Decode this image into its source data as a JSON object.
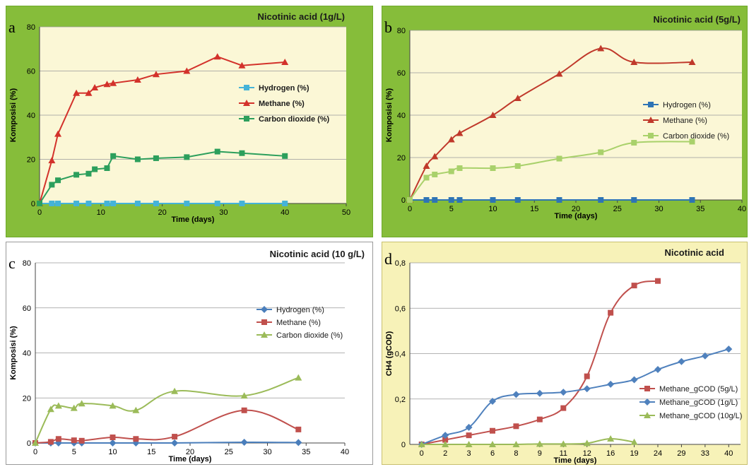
{
  "chart_data": [
    {
      "panel": "a",
      "letter": "a",
      "type": "line",
      "title": "Nicotinic acid (1g/L)",
      "xlabel": "Time (days)",
      "ylabel": "Komposisi (%)",
      "xlim": [
        0,
        50
      ],
      "ylim": [
        0,
        80
      ],
      "xticks": [
        0,
        10,
        20,
        30,
        40,
        50
      ],
      "yticks": [
        0,
        20,
        40,
        60,
        80
      ],
      "ytick_labels": [
        "0",
        "20",
        "40",
        "60",
        "80"
      ],
      "grid": "horizontal",
      "legend_position": "right",
      "colors": {
        "frame": "#86bd3a",
        "plot_bg": "#fbf7d6"
      },
      "series": [
        {
          "name": "Hydrogen (%)",
          "color": "#45b3d8",
          "marker": "square",
          "x": [
            0,
            2,
            3,
            6,
            8,
            11,
            12,
            16,
            19,
            24,
            29,
            33,
            40
          ],
          "y": [
            0,
            0,
            0,
            0,
            0,
            0,
            0,
            0,
            0,
            0,
            0,
            0,
            0
          ]
        },
        {
          "name": "Methane (%)",
          "color": "#d3322b",
          "marker": "triangle",
          "x": [
            0,
            2,
            3,
            6,
            8,
            9,
            11,
            12,
            16,
            19,
            24,
            29,
            33,
            40
          ],
          "y": [
            0,
            19.5,
            31.5,
            50,
            50,
            52.5,
            54,
            54.5,
            56,
            58.5,
            60,
            66.5,
            62.5,
            64
          ]
        },
        {
          "name": "Carbon dioxide (%)",
          "color": "#2c9f5c",
          "marker": "square",
          "x": [
            0,
            2,
            3,
            6,
            8,
            9,
            11,
            12,
            16,
            19,
            24,
            29,
            33,
            40
          ],
          "y": [
            0,
            8.5,
            10.5,
            13,
            13.5,
            15.5,
            16,
            21.5,
            20,
            20.5,
            21,
            23.5,
            22.8,
            21.5
          ]
        }
      ]
    },
    {
      "panel": "b",
      "letter": "b",
      "type": "line",
      "title": "Nicotinic acid (5g/L)",
      "xlabel": "Time (days)",
      "ylabel": "Komposisi (%)",
      "xlim": [
        0,
        40
      ],
      "ylim": [
        0,
        80
      ],
      "xticks": [
        0,
        5,
        10,
        15,
        20,
        25,
        30,
        35,
        40
      ],
      "yticks": [
        0,
        20,
        40,
        60,
        80
      ],
      "ytick_labels": [
        "0",
        "20",
        "40",
        "60",
        "80"
      ],
      "grid": "horizontal",
      "legend_position": "right",
      "colors": {
        "frame": "#86bd3a",
        "plot_bg": "#fbf7d6"
      },
      "series": [
        {
          "name": "Hydrogen (%)",
          "color": "#2e74b5",
          "marker": "square",
          "x": [
            0,
            2,
            3,
            5,
            6,
            10,
            13,
            18,
            23,
            27,
            34
          ],
          "y": [
            0,
            0,
            0,
            0,
            0,
            0,
            0,
            0,
            0,
            0,
            0
          ]
        },
        {
          "name": "Methane (%)",
          "color": "#c0392b",
          "marker": "triangle",
          "x": [
            0,
            2,
            3,
            5,
            6,
            10,
            13,
            18,
            23,
            27,
            34
          ],
          "y": [
            0,
            16,
            20.5,
            28.5,
            31.5,
            40,
            48,
            59.5,
            71.5,
            65,
            65
          ]
        },
        {
          "name": "Carbon dioxide (%)",
          "color": "#a9d16b",
          "marker": "square",
          "x": [
            0,
            2,
            3,
            5,
            6,
            10,
            13,
            18,
            23,
            27,
            34
          ],
          "y": [
            0,
            10.5,
            12,
            13.5,
            15,
            15,
            16,
            19.5,
            22.5,
            27,
            27.5
          ]
        }
      ]
    },
    {
      "panel": "c",
      "letter": "c",
      "type": "line",
      "title": "Nicotinic acid (10 g/L)",
      "xlabel": "Time (days)",
      "ylabel": "Komposisi (%)",
      "xlim": [
        0,
        40
      ],
      "ylim": [
        0,
        80
      ],
      "xticks": [
        0,
        5,
        10,
        15,
        20,
        25,
        30,
        35,
        40
      ],
      "yticks": [
        0,
        20,
        40,
        60,
        80
      ],
      "ytick_labels": [
        "0",
        "20",
        "40",
        "60",
        "80"
      ],
      "grid": "horizontal",
      "legend_position": "right",
      "colors": {
        "frame": "#ffffff",
        "plot_bg": "#ffffff"
      },
      "series": [
        {
          "name": "Hydrogen (%)",
          "color": "#4a7ebb",
          "marker": "diamond",
          "x": [
            0,
            2,
            3,
            5,
            6,
            10,
            13,
            18,
            27,
            34
          ],
          "y": [
            0,
            0,
            0,
            0,
            0,
            0,
            0,
            0,
            0.3,
            0.2
          ]
        },
        {
          "name": "Methane (%)",
          "color": "#c0504d",
          "marker": "square",
          "x": [
            0,
            2,
            3,
            5,
            6,
            10,
            13,
            18,
            27,
            34
          ],
          "y": [
            0,
            0.5,
            1.8,
            1.2,
            1,
            2.5,
            1.8,
            2.8,
            14.5,
            6
          ]
        },
        {
          "name": "Carbon dioxide (%)",
          "color": "#9bbb59",
          "marker": "triangle",
          "x": [
            0,
            2,
            3,
            5,
            6,
            10,
            13,
            18,
            27,
            34
          ],
          "y": [
            0,
            15,
            16.5,
            15.5,
            17.5,
            16.5,
            14.5,
            23,
            21,
            29
          ]
        }
      ]
    },
    {
      "panel": "d",
      "letter": "d",
      "type": "line",
      "title": "Nicotinic acid",
      "xlabel": "Time (days)",
      "ylabel": "CH4 (gCOD)",
      "categories": [
        "0",
        "2",
        "3",
        "6",
        "8",
        "9",
        "11",
        "12",
        "16",
        "19",
        "24",
        "29",
        "33",
        "40"
      ],
      "ylim": [
        0,
        0.8
      ],
      "yticks": [
        0,
        0.2,
        0.4,
        0.6,
        0.8
      ],
      "ytick_labels": [
        "0",
        "0,2",
        "0,4",
        "0,6",
        "0,8"
      ],
      "grid": "horizontal",
      "legend_position": "right",
      "colors": {
        "frame": "#f7f2b8",
        "plot_bg": "#ffffff"
      },
      "series": [
        {
          "name": "Methane_gCOD (5g/L)",
          "color": "#c0504d",
          "marker": "square",
          "values": [
            0,
            0.02,
            0.04,
            0.06,
            0.08,
            0.11,
            0.16,
            0.3,
            0.58,
            0.7,
            0.72,
            null,
            null,
            null
          ]
        },
        {
          "name": "Methane_gCOD (1g/L)",
          "color": "#4f81bd",
          "marker": "diamond",
          "values": [
            0,
            0.04,
            0.075,
            0.19,
            0.22,
            0.225,
            0.23,
            0.245,
            0.265,
            0.285,
            0.33,
            0.365,
            0.39,
            0.42
          ]
        },
        {
          "name": "Methane_gCOD (10g/L)",
          "color": "#9bbb59",
          "marker": "triangle",
          "values": [
            0,
            0,
            0,
            0,
            0,
            0.002,
            0.002,
            0.005,
            0.025,
            0.01,
            null,
            null,
            null,
            null
          ]
        }
      ]
    }
  ]
}
